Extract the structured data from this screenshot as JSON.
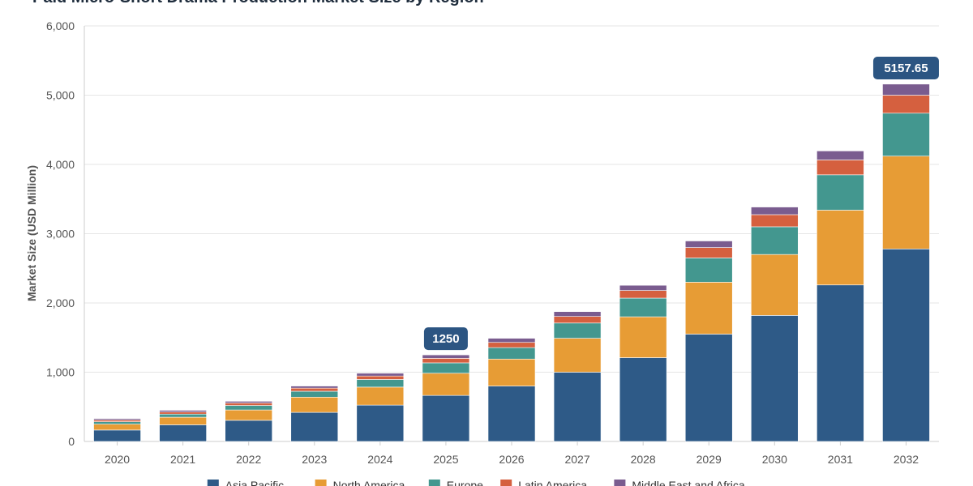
{
  "chart_data": {
    "type": "bar",
    "stacked": true,
    "title": "Paid Micro-Short Drama Production Market Size by Region",
    "xlabel": "",
    "ylabel": "Market Size (USD Million)",
    "ylim": [
      0,
      6000
    ],
    "yticks": [
      "0",
      "1,000",
      "2,000",
      "3,000",
      "4,000",
      "5,000",
      "6,000"
    ],
    "ytick_values": [
      0,
      1000,
      2000,
      3000,
      4000,
      5000,
      6000
    ],
    "grid": true,
    "legend_position": "bottom",
    "categories": [
      "2020",
      "2021",
      "2022",
      "2023",
      "2024",
      "2025",
      "2026",
      "2027",
      "2028",
      "2029",
      "2030",
      "2031",
      "2032"
    ],
    "series": [
      {
        "name": "Asia Pacific",
        "color": "#2e5a87",
        "values": [
          165,
          240,
          305,
          420,
          525,
          665,
          800,
          1000,
          1210,
          1550,
          1820,
          2260,
          2780
        ]
      },
      {
        "name": "North America",
        "color": "#e79c35",
        "values": [
          85,
          110,
          150,
          220,
          260,
          320,
          390,
          490,
          590,
          750,
          880,
          1080,
          1340
        ]
      },
      {
        "name": "Europe",
        "color": "#43978f",
        "values": [
          35,
          45,
          65,
          85,
          110,
          150,
          165,
          220,
          270,
          350,
          400,
          510,
          620
        ]
      },
      {
        "name": "Latin America",
        "color": "#d5603f",
        "values": [
          25,
          30,
          35,
          45,
          50,
          65,
          75,
          95,
          110,
          150,
          175,
          215,
          260
        ]
      },
      {
        "name": "Middle East and Africa",
        "color": "#7a5c8f",
        "values": [
          20,
          25,
          25,
          30,
          40,
          50,
          60,
          70,
          75,
          95,
          110,
          130,
          160
        ]
      }
    ],
    "annotations": [
      {
        "category": "2025",
        "text": "1250",
        "value": 1250
      },
      {
        "category": "2032",
        "text": "5157.65",
        "value": 5157.65
      }
    ]
  }
}
